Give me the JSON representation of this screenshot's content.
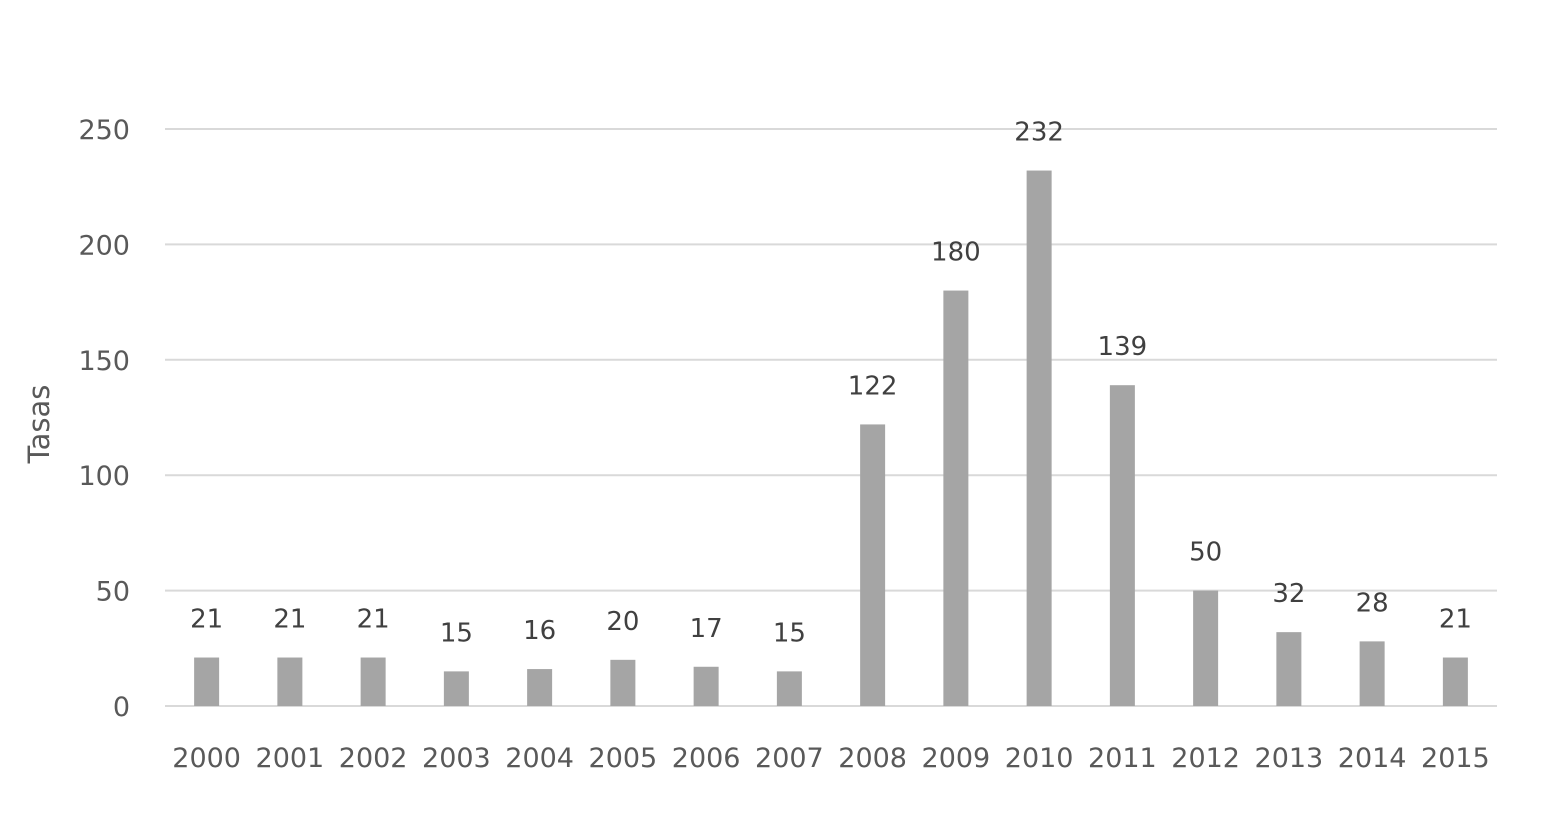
{
  "chart_data": {
    "type": "bar",
    "title": "",
    "xlabel": "",
    "ylabel": "Tasas",
    "categories": [
      "2000",
      "2001",
      "2002",
      "2003",
      "2004",
      "2005",
      "2006",
      "2007",
      "2008",
      "2009",
      "2010",
      "2011",
      "2012",
      "2013",
      "2014",
      "2015"
    ],
    "values": [
      21,
      21,
      21,
      15,
      16,
      20,
      17,
      15,
      122,
      180,
      232,
      139,
      50,
      32,
      28,
      21
    ],
    "data_labels": [
      "21",
      "21",
      "21",
      "15",
      "16",
      "20",
      "17",
      "15",
      "122",
      "180",
      "232",
      "139",
      "50",
      "32",
      "28",
      "21"
    ],
    "ylim": [
      0,
      250
    ],
    "yticks": [
      0,
      50,
      100,
      150,
      200,
      250
    ],
    "grid": true,
    "legend": "none",
    "colors": {
      "bar": "#a5a5a5",
      "grid": "#d9d9d9",
      "axis_text": "#595959",
      "data_label_text": "#404040"
    }
  }
}
